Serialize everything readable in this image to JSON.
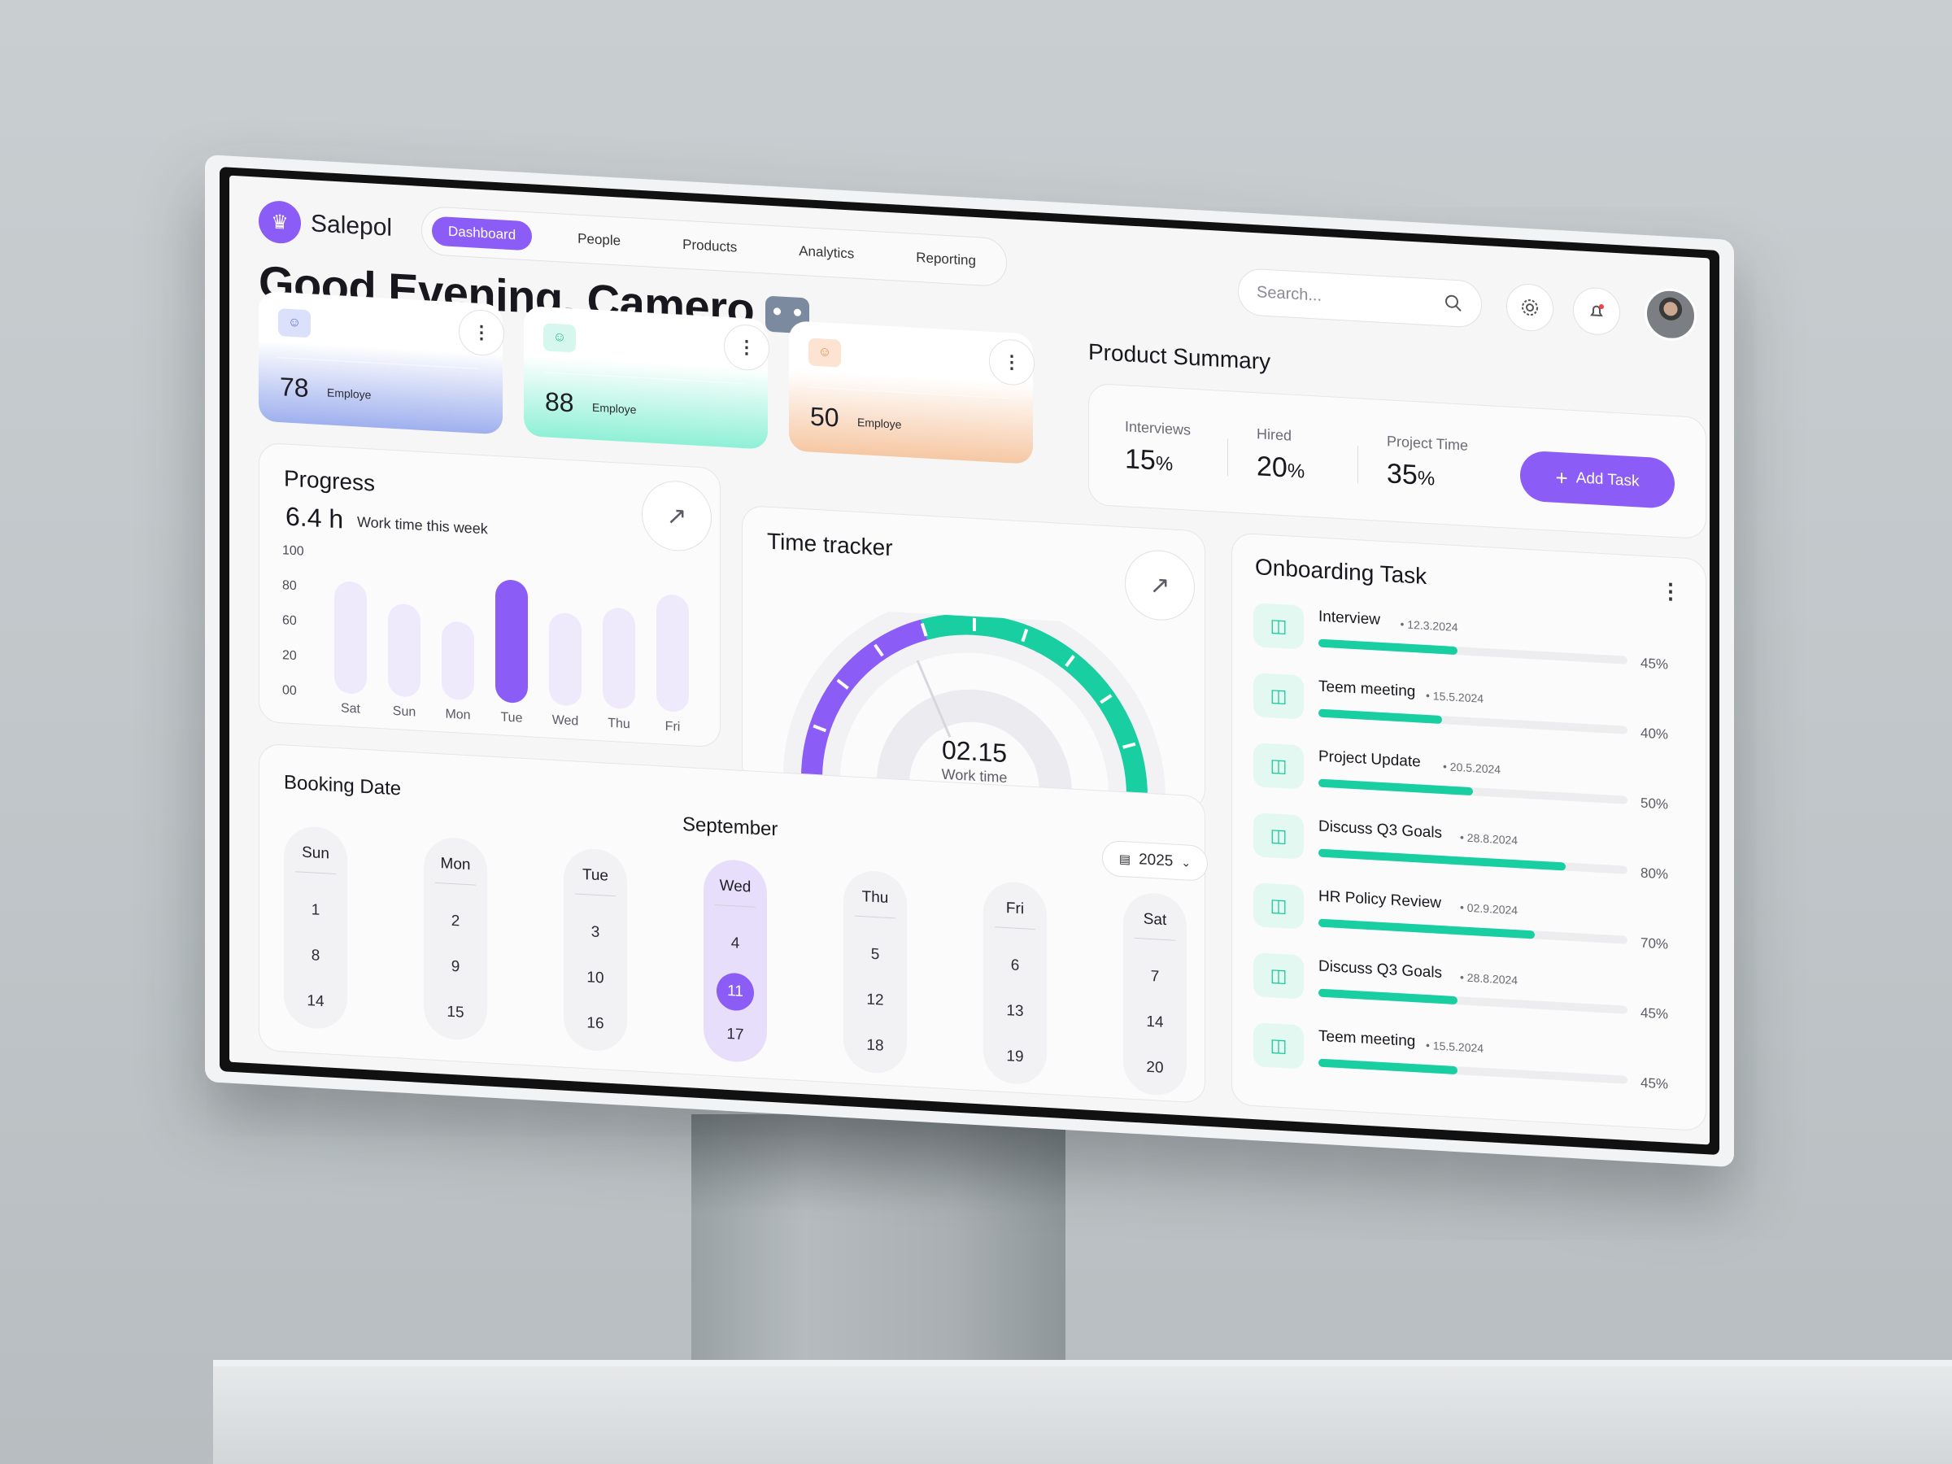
{
  "app": {
    "name": "Salepol"
  },
  "nav": {
    "tabs": [
      "Dashboard",
      "People",
      "Products",
      "Analytics",
      "Reporting"
    ],
    "active": "Dashboard"
  },
  "greeting": "Good Evening, Camero",
  "search": {
    "placeholder": "Search..."
  },
  "stats": [
    {
      "value": "78",
      "label": "Employe",
      "color": "#9fb0ee"
    },
    {
      "value": "88",
      "label": "Employe",
      "color": "#8ff0d6"
    },
    {
      "value": "50",
      "label": "Employe",
      "color": "#f6c8a4"
    }
  ],
  "progress": {
    "title": "Progress",
    "hours": "6.4 h",
    "subtitle": "Work time this week"
  },
  "chart_data": {
    "type": "bar",
    "title": "Progress",
    "categories": [
      "Sat",
      "Sun",
      "Mon",
      "Tue",
      "Wed",
      "Thu",
      "Fri"
    ],
    "values": [
      80,
      66,
      56,
      88,
      66,
      72,
      84
    ],
    "highlight": "Tue",
    "yticks": [
      "100",
      "80",
      "60",
      "20",
      "00"
    ],
    "ylim": [
      0,
      100
    ],
    "colors": {
      "bar": "#efe9fc",
      "active": "#8b5cf6"
    }
  },
  "time_tracker": {
    "title": "Time tracker",
    "value": "02.15",
    "label": "Work time",
    "purple_fraction": 0.4
  },
  "summary": {
    "title": "Product Summary",
    "items": [
      {
        "label": "Interviews",
        "value": "15",
        "unit": "%"
      },
      {
        "label": "Hired",
        "value": "20",
        "unit": "%"
      },
      {
        "label": "Project Time",
        "value": "35",
        "unit": "%"
      }
    ],
    "add_task": "Add Task"
  },
  "onboarding": {
    "title": "Onboarding Task",
    "tasks": [
      {
        "title": "Interview",
        "date": "12.3.2024",
        "pct": "45%",
        "fill": 0.45
      },
      {
        "title": "Teem meeting",
        "date": "15.5.2024",
        "pct": "40%",
        "fill": 0.4
      },
      {
        "title": "Project Update",
        "date": "20.5.2024",
        "pct": "50%",
        "fill": 0.5
      },
      {
        "title": "Discuss Q3 Goals",
        "date": "28.8.2024",
        "pct": "80%",
        "fill": 0.8
      },
      {
        "title": "HR Policy Review",
        "date": "02.9.2024",
        "pct": "70%",
        "fill": 0.7
      },
      {
        "title": "Discuss Q3 Goals",
        "date": "28.8.2024",
        "pct": "45%",
        "fill": 0.45
      },
      {
        "title": "Teem meeting",
        "date": "15.5.2024",
        "pct": "45%",
        "fill": 0.45
      }
    ]
  },
  "booking": {
    "title": "Booking Date",
    "month": "September",
    "year": "2025",
    "days": [
      {
        "name": "Sun",
        "dates": [
          "1",
          "8",
          "14"
        ]
      },
      {
        "name": "Mon",
        "dates": [
          "2",
          "9",
          "15"
        ]
      },
      {
        "name": "Tue",
        "dates": [
          "3",
          "10",
          "16"
        ]
      },
      {
        "name": "Wed",
        "dates": [
          "4",
          "11",
          "17"
        ],
        "active": true,
        "selected": "11"
      },
      {
        "name": "Thu",
        "dates": [
          "5",
          "12",
          "18"
        ]
      },
      {
        "name": "Fri",
        "dates": [
          "6",
          "13",
          "19"
        ]
      },
      {
        "name": "Sat",
        "dates": [
          "7",
          "14",
          "20"
        ]
      }
    ]
  },
  "colors": {
    "accent": "#8b5cf6",
    "teal": "#19cfa1"
  }
}
